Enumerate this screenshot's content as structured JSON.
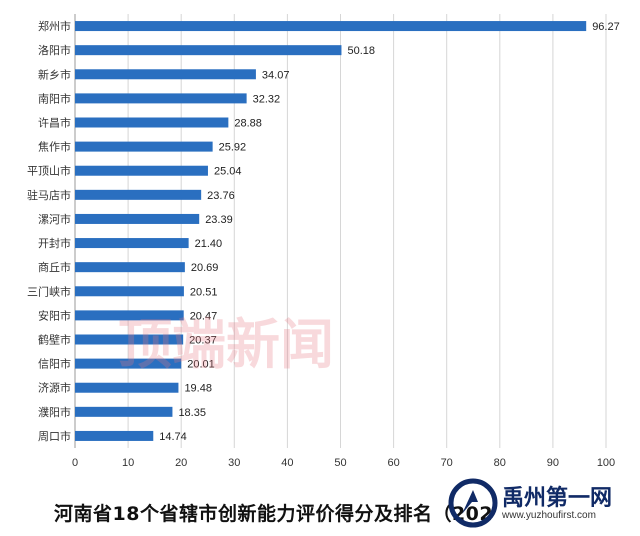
{
  "colors": {
    "bar": "#2a6fc0",
    "accent": "#102a66"
  },
  "chart_data": {
    "type": "bar",
    "orientation": "horizontal",
    "categories": [
      "郑州市",
      "洛阳市",
      "新乡市",
      "南阳市",
      "许昌市",
      "焦作市",
      "平顶山市",
      "驻马店市",
      "漯河市",
      "开封市",
      "商丘市",
      "三门峡市",
      "安阳市",
      "鹤壁市",
      "信阳市",
      "济源市",
      "濮阳市",
      "周口市"
    ],
    "values": [
      96.27,
      50.18,
      34.07,
      32.32,
      28.88,
      25.92,
      25.04,
      23.76,
      23.39,
      21.4,
      20.69,
      20.51,
      20.47,
      20.37,
      20.01,
      19.48,
      18.35,
      14.74
    ],
    "value_labels": [
      "96.27",
      "50.18",
      "34.07",
      "32.32",
      "28.88",
      "25.92",
      "25.04",
      "23.76",
      "23.39",
      "21.40",
      "20.69",
      "20.51",
      "20.47",
      "20.37",
      "20.01",
      "19.48",
      "18.35",
      "14.74"
    ],
    "xlim": [
      0,
      100
    ],
    "xticks": [
      0,
      10,
      20,
      30,
      40,
      50,
      60,
      70,
      80,
      90,
      100
    ],
    "grid": true,
    "title": "河南省18个省辖市创新能力评价得分及排名（202"
  },
  "watermark": "顶端新闻",
  "badge": {
    "name": "禹州第一网",
    "url": "www.yuzhoufirst.com"
  }
}
